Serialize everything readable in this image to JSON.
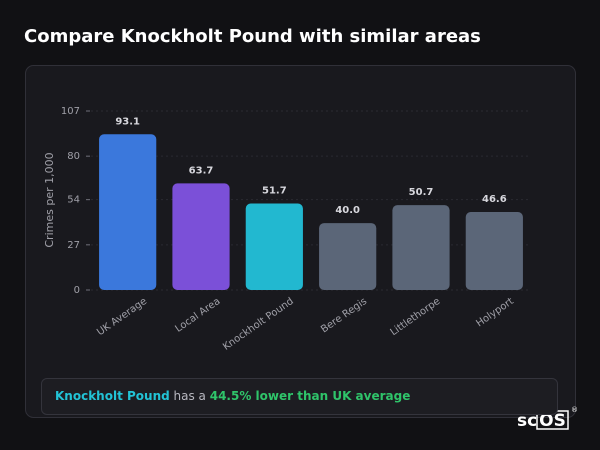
{
  "header": {
    "title": "Compare Knockholt Pound with similar areas"
  },
  "chart_data": {
    "type": "bar",
    "y_label": "Crimes per 1,000",
    "categories": [
      "UK Average",
      "Local Area",
      "Knockholt Pound",
      "Bere Regis",
      "Littlethorpe",
      "Holyport"
    ],
    "values": [
      93.1,
      63.7,
      51.7,
      40.0,
      50.7,
      46.6
    ],
    "value_labels": [
      "93.1",
      "63.7",
      "51.7",
      "40.0",
      "50.7",
      "46.6"
    ],
    "colors": [
      "#3b78dc",
      "#7b50d8",
      "#22b8d0",
      "#5b6678",
      "#5b6678",
      "#5b6678"
    ],
    "ylim": [
      0,
      107
    ],
    "yticks": [
      0,
      27,
      54,
      80,
      107
    ],
    "grid": true
  },
  "summary": {
    "name": "Knockholt Pound",
    "text": " has a ",
    "stat": "44.5% lower than UK average"
  },
  "logo": {
    "prefix": "sc",
    "boxed": "OS",
    "mark": "®"
  }
}
